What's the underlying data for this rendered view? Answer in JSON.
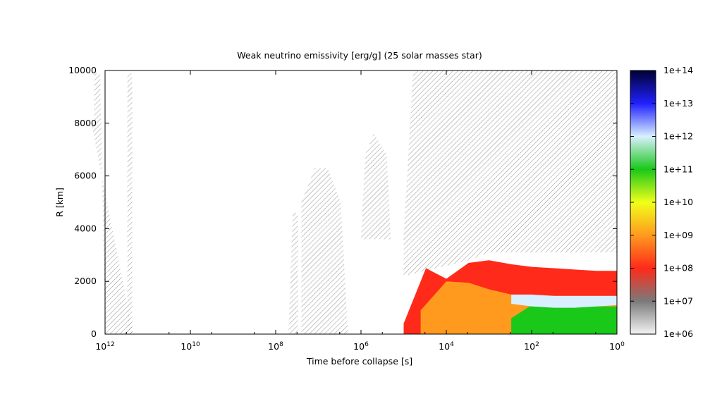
{
  "chart_data": {
    "type": "heatmap",
    "title": "Weak neutrino emissivity [erg/g] (25 solar masses star)",
    "xlabel": "Time before collapse [s]",
    "ylabel": "R [km]",
    "x_scale": "log",
    "x_reversed": true,
    "xlim": [
      1000000000000.0,
      1
    ],
    "ylim": [
      0,
      10000
    ],
    "x_ticks": [
      {
        "base": "10",
        "exp": "12",
        "value": 1000000000000.0
      },
      {
        "base": "10",
        "exp": "10",
        "value": 10000000000.0
      },
      {
        "base": "10",
        "exp": "8",
        "value": 100000000.0
      },
      {
        "base": "10",
        "exp": "6",
        "value": 1000000.0
      },
      {
        "base": "10",
        "exp": "4",
        "value": 10000.0
      },
      {
        "base": "10",
        "exp": "2",
        "value": 100
      },
      {
        "base": "10",
        "exp": "0",
        "value": 1
      }
    ],
    "y_ticks": [
      "0",
      "2000",
      "4000",
      "6000",
      "8000",
      "10000"
    ],
    "y_tick_values": [
      0,
      2000,
      4000,
      6000,
      8000,
      10000
    ],
    "colorbar": {
      "scale": "log",
      "range": [
        1000000.0,
        100000000000000.0
      ],
      "labels": [
        "1e+06",
        "1e+07",
        "1e+08",
        "1e+09",
        "1e+10",
        "1e+11",
        "1e+12",
        "1e+13",
        "1e+14"
      ],
      "values": [
        1000000.0,
        10000000.0,
        100000000.0,
        1000000000.0,
        10000000000.0,
        100000000000.0,
        1000000000000.0,
        10000000000000.0,
        100000000000000.0
      ],
      "colors": [
        "#f4f4f4",
        "#7a7a7a",
        "#ff2a1a",
        "#ff9a1e",
        "#f0ff1a",
        "#1ac81a",
        "#d8f0ff",
        "#2020ff",
        "#000033"
      ]
    },
    "hatched_regions": [
      {
        "x": [
          220000000000.0,
          1000000000000.0,
          1300000000000.0,
          1800000000000.0,
          1800000000000.0,
          2100000000000.0
        ],
        "y": [
          0,
          0,
          9900,
          9900,
          8000,
          8000
        ]
      },
      {
        "x": [
          230000000000.0,
          230000000000.0,
          300000000000.0,
          300000000000.0
        ],
        "y": [
          0,
          9900,
          9900,
          0
        ]
      },
      {
        "x": [
          30000000.0,
          30000000.0,
          40000000.0,
          50000000.0
        ],
        "y": [
          0,
          4600,
          4600,
          0
        ]
      },
      {
        "x": [
          2000000.0,
          3000000.0,
          6000000.0,
          12000000.0,
          25000000.0,
          25000000.0
        ],
        "y": [
          0,
          5000,
          6300,
          6300,
          5000,
          0
        ]
      },
      {
        "x": [
          200000.0,
          250000.0,
          500000.0,
          800000.0,
          1000000.0
        ],
        "y": [
          3600,
          6800,
          7600,
          6800,
          3600
        ]
      },
      {
        "x": [
          1,
          1,
          60000.0,
          100000.0,
          100000.0,
          3000.0,
          1000.0
        ],
        "y": [
          3100,
          10000,
          10000,
          3700,
          2200,
          2800,
          3100
        ]
      }
    ],
    "emission": [
      {
        "t": [
          100000.0,
          30000.0,
          10000.0,
          3000.0,
          1000.0,
          300,
          100,
          30,
          10,
          3,
          1
        ],
        "r_top": [
          400,
          2500,
          2100,
          2700,
          2800,
          2650,
          2550,
          2500,
          2450,
          2400,
          2400
        ],
        "level": 100000000.0
      },
      {
        "t": [
          40000.0,
          10000.0,
          3000.0,
          1000.0,
          300,
          100,
          30,
          10,
          3,
          1
        ],
        "r_top": [
          900,
          2000,
          1950,
          1700,
          1500,
          1400,
          1400,
          1400,
          1400,
          1400
        ],
        "level": 1000000000.0
      },
      {
        "t": [
          300,
          100,
          30,
          10,
          3,
          1
        ],
        "r_top": [
          600,
          1100,
          1100,
          1050,
          1050,
          1050
        ],
        "level": 100000000000.0
      },
      {
        "t": [
          300,
          100,
          30,
          10,
          3,
          1
        ],
        "r_top": [
          1500,
          1500,
          1450,
          1450,
          1450,
          1450
        ],
        "r_bot": [
          1150,
          1050,
          1000,
          1000,
          1050,
          1100
        ],
        "level": 1000000000000.0
      }
    ]
  }
}
